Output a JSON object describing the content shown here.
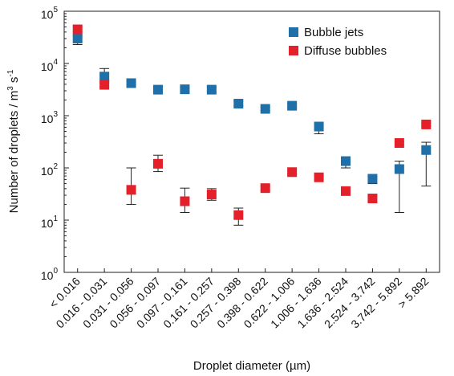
{
  "chart_data": {
    "type": "scatter",
    "title": "",
    "xlabel": "Droplet diameter (µm)",
    "ylabel_text": "Number of droplets / m",
    "ylabel_sup1": "3",
    "ylabel_mid": " s",
    "ylabel_sup2": "-1",
    "y_scale": "log",
    "ylim": [
      1,
      100000
    ],
    "y_ticks": [
      {
        "base": "10",
        "exp": "0",
        "value": 1
      },
      {
        "base": "10",
        "exp": "1",
        "value": 10
      },
      {
        "base": "10",
        "exp": "2",
        "value": 100
      },
      {
        "base": "10",
        "exp": "3",
        "value": 1000
      },
      {
        "base": "10",
        "exp": "4",
        "value": 10000
      },
      {
        "base": "10",
        "exp": "5",
        "value": 100000
      }
    ],
    "categories": [
      "< 0.016",
      "0.016 - 0.031",
      "0.031 - 0.056",
      "0.056 - 0.097",
      "0.097 - 0.161",
      "0.161 - 0.257",
      "0.257 - 0.398",
      "0.398 - 0.622",
      "0.622 - 1.006",
      "1.006 - 1.636",
      "1.636 - 2.524",
      "2.524 - 3.742",
      "3.742 - 5.892",
      "> 5.892"
    ],
    "legend_position": "top-right",
    "series": [
      {
        "name": "Bubble jets",
        "color": "#1f6fa8",
        "values": [
          30000,
          5600,
          4200,
          3150,
          3200,
          3150,
          1700,
          1350,
          1550,
          620,
          135,
          62,
          95,
          220
        ],
        "err_low": [
          23000,
          4600,
          3800,
          2850,
          2900,
          2850,
          1550,
          1250,
          1420,
          450,
          100,
          50,
          14,
          45
        ],
        "err_high": [
          34000,
          8000,
          4600,
          3500,
          3500,
          3500,
          1900,
          1450,
          1700,
          700,
          150,
          70,
          135,
          310
        ]
      },
      {
        "name": "Diffuse bubbles",
        "color": "#e4202a",
        "values": [
          45000,
          3900,
          38,
          120,
          23,
          31,
          12.5,
          41,
          83,
          66,
          36,
          26,
          300,
          680
        ],
        "err_low": [
          40000,
          3600,
          20,
          85,
          14,
          24,
          8,
          37,
          76,
          60,
          33,
          23,
          280,
          640
        ],
        "err_high": [
          50000,
          4200,
          100,
          175,
          41,
          40,
          17,
          45,
          90,
          72,
          40,
          29,
          320,
          720
        ]
      }
    ]
  }
}
